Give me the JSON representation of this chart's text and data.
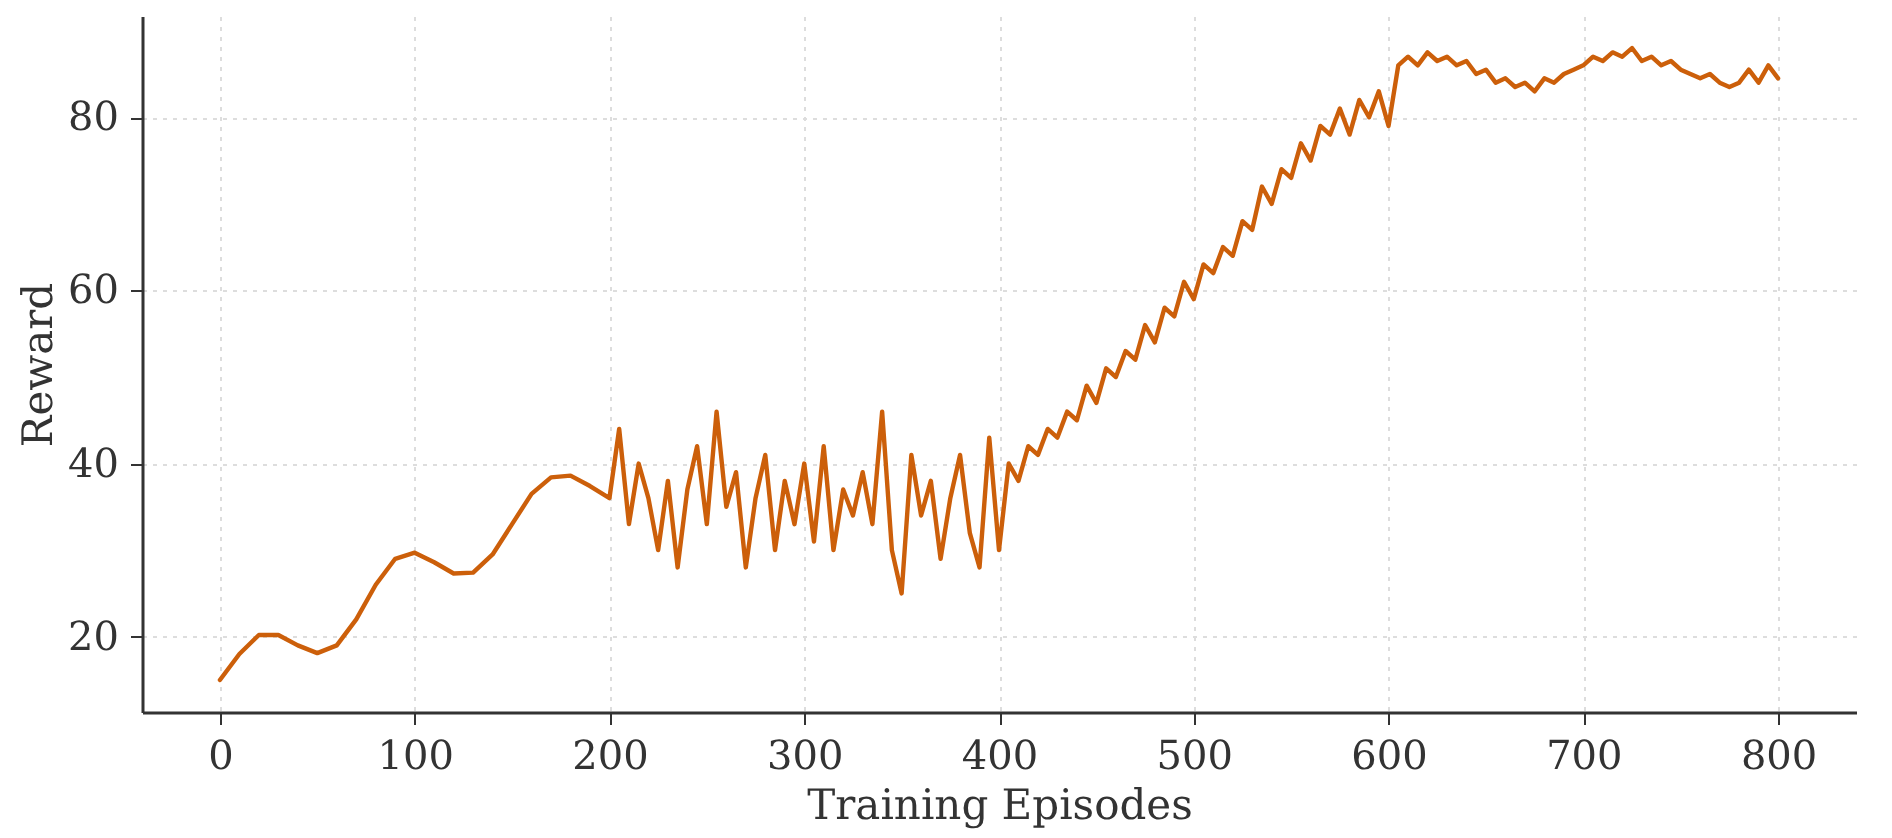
{
  "chart_data": {
    "type": "line",
    "xlabel": "Training Episodes",
    "ylabel": "Reward",
    "xlim": [
      -40,
      840
    ],
    "ylim": [
      11.3,
      91.7
    ],
    "xticks": [
      0,
      100,
      200,
      300,
      400,
      500,
      600,
      700,
      800
    ],
    "yticks": [
      20,
      40,
      60,
      80
    ],
    "grid": true,
    "line_style": "solid",
    "x": [
      0,
      10,
      20,
      30,
      40,
      50,
      60,
      70,
      80,
      90,
      100,
      110,
      120,
      130,
      140,
      150,
      160,
      170,
      180,
      190,
      200,
      205,
      210,
      215,
      220,
      225,
      230,
      235,
      240,
      245,
      250,
      255,
      260,
      265,
      270,
      275,
      280,
      285,
      290,
      295,
      300,
      305,
      310,
      315,
      320,
      325,
      330,
      335,
      340,
      345,
      350,
      355,
      360,
      365,
      370,
      375,
      380,
      385,
      390,
      395,
      400,
      405,
      410,
      415,
      420,
      425,
      430,
      435,
      440,
      445,
      450,
      455,
      460,
      465,
      470,
      475,
      480,
      485,
      490,
      495,
      500,
      505,
      510,
      515,
      520,
      525,
      530,
      535,
      540,
      545,
      550,
      555,
      560,
      565,
      570,
      575,
      580,
      585,
      590,
      595,
      600,
      605,
      610,
      615,
      620,
      625,
      630,
      635,
      640,
      645,
      650,
      655,
      660,
      665,
      670,
      675,
      680,
      685,
      690,
      695,
      700,
      705,
      710,
      715,
      720,
      725,
      730,
      735,
      740,
      745,
      750,
      755,
      760,
      765,
      770,
      775,
      780,
      785,
      790,
      795,
      800
    ],
    "series": [
      {
        "color": "#cc5f0a",
        "values": [
          15,
          18,
          20.2,
          20.2,
          19,
          18.1,
          19,
          22,
          26,
          29,
          29.7,
          28.6,
          27.3,
          27.4,
          29.5,
          33,
          36.5,
          38.4,
          38.6,
          37.4,
          36,
          44,
          33,
          40,
          36,
          30,
          38,
          28,
          37,
          42,
          33,
          46,
          35,
          39,
          28,
          36,
          41,
          30,
          38,
          33,
          40,
          31,
          42,
          30,
          37,
          34,
          39,
          33,
          46,
          30,
          25,
          41,
          34,
          38,
          29,
          36,
          41,
          32,
          28,
          43,
          30,
          40,
          38,
          42,
          41,
          44,
          43,
          46,
          45,
          49,
          47,
          51,
          50,
          53,
          52,
          56,
          54,
          58,
          57,
          61,
          59,
          63,
          62,
          65,
          64,
          68,
          67,
          72,
          70,
          74,
          73,
          77,
          75,
          79,
          78,
          81,
          78,
          82,
          80,
          83,
          79,
          86,
          87,
          86,
          87.5,
          86.5,
          87,
          86,
          86.5,
          85,
          85.5,
          84,
          84.5,
          83.5,
          84,
          83,
          84.5,
          84,
          85,
          85.5,
          86,
          87,
          86.5,
          87.5,
          87,
          88,
          86.5,
          87,
          86,
          86.5,
          85.5,
          85,
          84.5,
          85,
          84,
          83.5,
          84,
          85.5,
          84,
          86,
          84.5
        ]
      }
    ]
  }
}
